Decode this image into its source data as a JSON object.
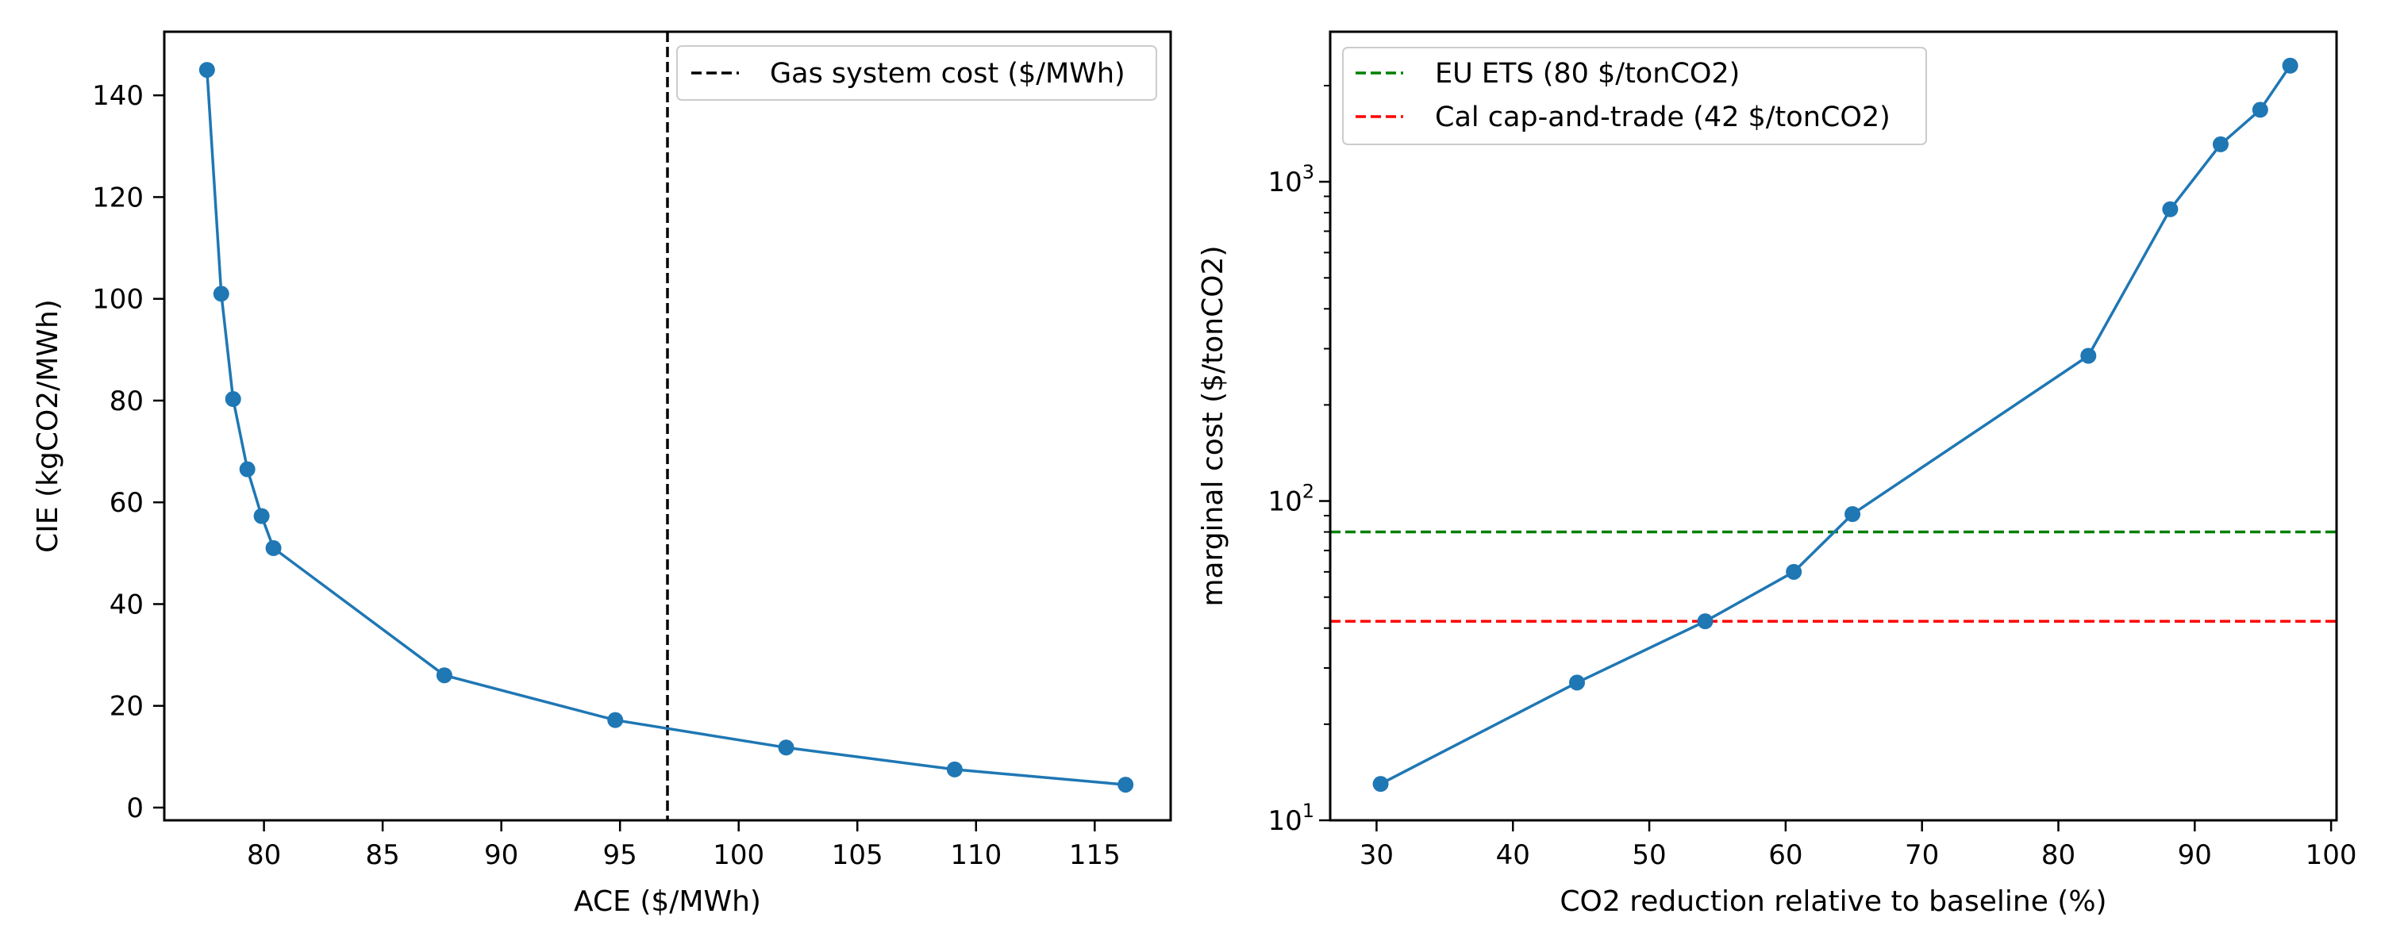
{
  "colors": {
    "series": "#1f77b4",
    "gas_line": "#000000",
    "eu_ets_line": "#008000",
    "cal_line": "#ff0000",
    "axes": "#000000"
  },
  "chart_data": [
    {
      "type": "line",
      "xlabel": "ACE ($/MWh)",
      "ylabel": "CIE (kgCO2/MWh)",
      "xlim": [
        75.8,
        118.2
      ],
      "ylim": [
        -2.5,
        152.5
      ],
      "xticks": [
        80,
        85,
        90,
        95,
        100,
        105,
        110,
        115
      ],
      "yticks": [
        0,
        20,
        40,
        60,
        80,
        100,
        120,
        140
      ],
      "grid": false,
      "legend_position": "top-right",
      "series": [
        {
          "x": [
            77.6,
            78.2,
            78.7,
            79.3,
            79.9,
            80.4,
            87.6,
            94.8,
            102.0,
            109.1,
            116.3
          ],
          "y": [
            145.0,
            101.0,
            80.3,
            66.5,
            57.3,
            51.0,
            26.0,
            17.2,
            11.8,
            7.5,
            4.5
          ],
          "marker": "circle"
        }
      ],
      "reference_lines": [
        {
          "orientation": "vertical",
          "value": 97,
          "label": "Gas system cost ($/MWh)",
          "color": "#000000",
          "style": "dashed"
        }
      ]
    },
    {
      "type": "line",
      "xlabel": "CO2 reduction relative to baseline (%)",
      "ylabel": "marginal cost ($/tonCO2)",
      "xlim": [
        26.6,
        100.4
      ],
      "ylim": [
        10,
        2950
      ],
      "yscale": "log",
      "xticks": [
        30,
        40,
        50,
        60,
        70,
        80,
        90,
        100
      ],
      "yticks": [
        {
          "base": "10",
          "exp": "1",
          "value": 10
        },
        {
          "base": "10",
          "exp": "2",
          "value": 100
        },
        {
          "base": "10",
          "exp": "3",
          "value": 1000
        }
      ],
      "grid": false,
      "legend_position": "top-left",
      "series": [
        {
          "x": [
            30.3,
            44.7,
            54.1,
            60.6,
            64.9,
            82.2,
            88.2,
            91.9,
            94.8,
            97.0
          ],
          "y": [
            13,
            27,
            42,
            60,
            91,
            285,
            820,
            1310,
            1680,
            2310
          ],
          "marker": "circle"
        }
      ],
      "reference_lines": [
        {
          "orientation": "horizontal",
          "value": 80,
          "label": "EU ETS (80 $/tonCO2)",
          "color": "#008000",
          "style": "dashed"
        },
        {
          "orientation": "horizontal",
          "value": 42,
          "label": "Cal cap-and-trade (42 $/tonCO2)",
          "color": "#ff0000",
          "style": "dashed"
        }
      ]
    }
  ]
}
